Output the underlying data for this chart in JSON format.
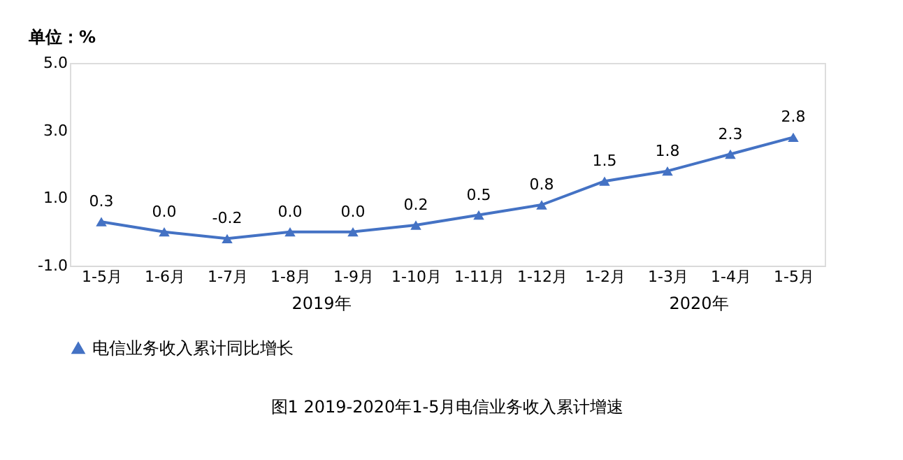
{
  "chart_data": {
    "type": "line",
    "title": "图1    2019-2020年1-5月电信业务收入累计增速",
    "ylabel": "单位：%",
    "categories": [
      "1-5月",
      "1-6月",
      "1-7月",
      "1-8月",
      "1-9月",
      "1-10月",
      "1-11月",
      "1-12月",
      "1-2月",
      "1-3月",
      "1-4月",
      "1-5月"
    ],
    "series": [
      {
        "name": "电信业务收入累计同比增长",
        "color": "#4472c4",
        "values": [
          0.3,
          0.0,
          -0.2,
          0.0,
          0.0,
          0.2,
          0.5,
          0.8,
          1.5,
          1.8,
          2.3,
          2.8
        ],
        "value_labels": [
          "0.3",
          "0.0",
          "-0.2",
          "0.0",
          "0.0",
          "0.2",
          "0.5",
          "0.8",
          "1.5",
          "1.8",
          "2.3",
          "2.8"
        ]
      }
    ],
    "annotations": [
      "2019年",
      "2020年"
    ],
    "ylim": [
      -1.0,
      5.0
    ],
    "yticks": [
      {
        "value": -1,
        "label": "-1.0"
      },
      {
        "value": 1,
        "label": "1.0"
      },
      {
        "value": 3,
        "label": "3.0"
      },
      {
        "value": 5,
        "label": "5.0"
      }
    ],
    "marker": "triangle",
    "line_style": "solid",
    "grid": false,
    "legend": "bottom"
  }
}
